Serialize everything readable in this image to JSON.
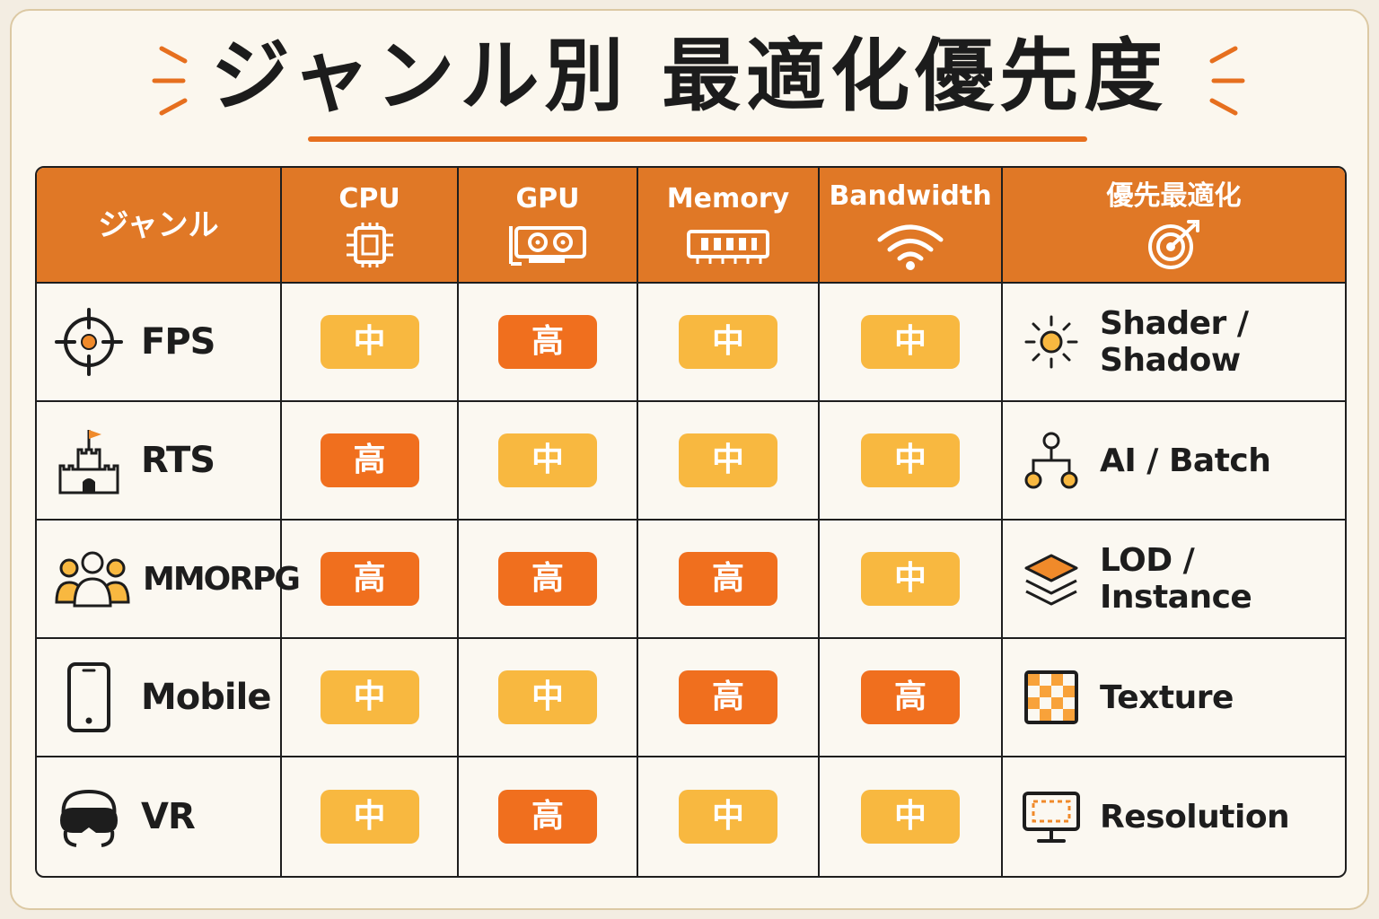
{
  "title": "ジャンル別 最適化優先度",
  "colors": {
    "accent": "#e07826",
    "high": "#f06f1e",
    "mid": "#f8b840"
  },
  "headers": {
    "genre": "ジャンル",
    "cpu": "CPU",
    "gpu": "GPU",
    "memory": "Memory",
    "bandwidth": "Bandwidth",
    "priority": "優先最適化"
  },
  "header_icons": [
    "cpu-chip-icon",
    "graphics-card-icon",
    "memory-module-icon",
    "wifi-icon",
    "target-icon"
  ],
  "rows": [
    {
      "genre": "FPS",
      "icon": "crosshair-icon",
      "cpu": "中",
      "gpu": "高",
      "memory": "中",
      "bandwidth": "中",
      "optimization": "Shader / Shadow",
      "opt_icon": "sun-icon"
    },
    {
      "genre": "RTS",
      "icon": "castle-icon",
      "cpu": "高",
      "gpu": "中",
      "memory": "中",
      "bandwidth": "中",
      "optimization": "AI / Batch",
      "opt_icon": "hierarchy-icon"
    },
    {
      "genre": "MMORPG",
      "icon": "group-icon",
      "cpu": "高",
      "gpu": "高",
      "memory": "高",
      "bandwidth": "中",
      "optimization": "LOD / Instance",
      "opt_icon": "layers-icon"
    },
    {
      "genre": "Mobile",
      "icon": "smartphone-icon",
      "cpu": "中",
      "gpu": "中",
      "memory": "高",
      "bandwidth": "高",
      "optimization": "Texture",
      "opt_icon": "checker-icon"
    },
    {
      "genre": "VR",
      "icon": "vr-headset-icon",
      "cpu": "中",
      "gpu": "高",
      "memory": "中",
      "bandwidth": "中",
      "optimization": "Resolution",
      "opt_icon": "monitor-icon"
    }
  ]
}
